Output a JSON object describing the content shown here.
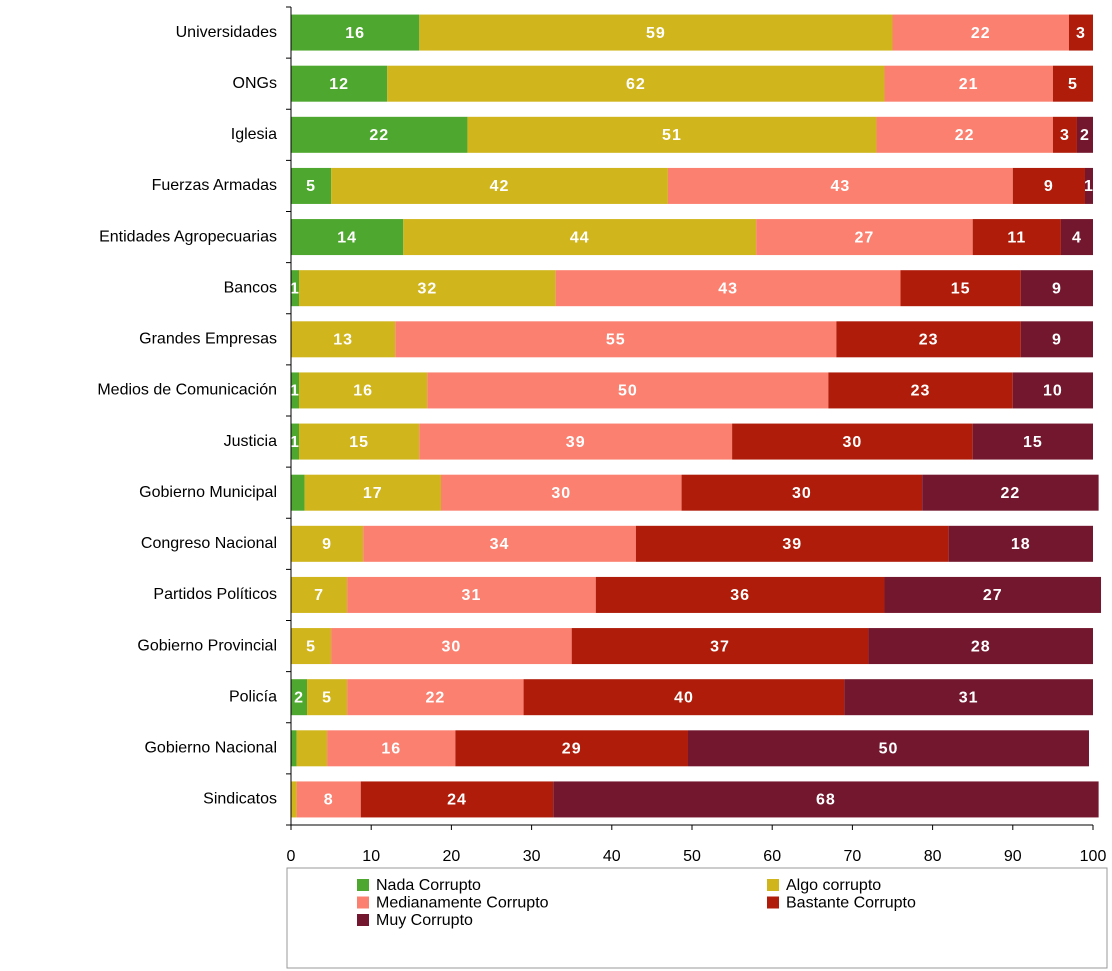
{
  "chart_data": {
    "type": "stacked-barh",
    "categories": [
      "Universidades",
      "ONGs",
      "Iglesia",
      "Fuerzas Armadas",
      "Entidades Agropecuarias",
      "Bancos",
      "Grandes Empresas",
      "Medios de Comunicación",
      "Justicia",
      "Gobierno Municipal",
      "Congreso Nacional",
      "Partidos Políticos",
      "Gobierno Provincial",
      "Policía",
      "Gobierno Nacional",
      "Sindicatos"
    ],
    "series": [
      {
        "name": "Nada Corrupto",
        "color": "#4ea72e",
        "values": [
          16,
          12,
          22,
          5,
          14,
          1,
          0,
          1,
          1,
          1.7,
          0,
          0,
          0,
          2,
          0.7,
          0
        ],
        "value_labels": [
          "16",
          "12",
          "22",
          "5",
          "14",
          "1",
          null,
          "1",
          "1",
          null,
          null,
          null,
          null,
          "2",
          null,
          null
        ]
      },
      {
        "name": "Algo corrupto",
        "color": "#d0b51c",
        "values": [
          59,
          62,
          51,
          42,
          44,
          32,
          13,
          16,
          15,
          17,
          9,
          7,
          5,
          5,
          3.8,
          0.7
        ],
        "value_labels": [
          "59",
          "62",
          "51",
          "42",
          "44",
          "32",
          "13",
          "16",
          "15",
          "17",
          "9",
          "7",
          "5",
          "5",
          null,
          null
        ]
      },
      {
        "name": "Medianamente Corrupto",
        "color": "#fb8070",
        "values": [
          22,
          21,
          22,
          43,
          27,
          43,
          55,
          50,
          39,
          30,
          34,
          31,
          30,
          22,
          16,
          8
        ],
        "value_labels": [
          "22",
          "21",
          "22",
          "43",
          "27",
          "43",
          "55",
          "50",
          "39",
          "30",
          "34",
          "31",
          "30",
          "22",
          "16",
          "8"
        ]
      },
      {
        "name": "Bastante Corrupto",
        "color": "#b01c0a",
        "values": [
          3,
          5,
          3,
          9,
          11,
          15,
          23,
          23,
          30,
          30,
          39,
          36,
          37,
          40,
          29,
          24
        ],
        "value_labels": [
          "3",
          "5",
          "3",
          "9",
          "11",
          "15",
          "23",
          "23",
          "30",
          "30",
          "39",
          "36",
          "37",
          "40",
          "29",
          "24"
        ]
      },
      {
        "name": "Muy Corrupto",
        "color": "#73172e",
        "values": [
          0,
          0,
          2,
          1,
          4,
          9,
          9,
          10,
          15,
          22,
          18,
          27,
          28,
          31,
          50,
          68
        ],
        "value_labels": [
          null,
          null,
          "2",
          "1",
          "4",
          "9",
          "9",
          "10",
          "15",
          "22",
          "18",
          "27",
          "28",
          "31",
          "50",
          "68"
        ]
      }
    ],
    "xlim": [
      0,
      100
    ],
    "xticks": [
      0,
      10,
      20,
      30,
      40,
      50,
      60,
      70,
      80,
      90,
      100
    ]
  }
}
